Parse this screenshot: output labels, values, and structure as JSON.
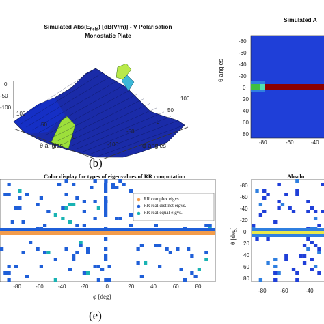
{
  "captions": {
    "b": "(b)",
    "e": "(e)"
  },
  "chart_data": [
    {
      "type": "surface",
      "title": "Simulated Abs(E_field) [dB(V/m)] - V Polarisation",
      "title_parts": {
        "pre": "Simulated Abs(E",
        "sub": "field",
        "post": ") [dB(V/m)] - V Polarisation"
      },
      "subtitle": "Monostatic Plate",
      "xlabel": "θ angles",
      "ylabel": "φ angles",
      "z_ticks": [
        "0",
        "-50",
        "-100"
      ],
      "x_ticks": [
        "100",
        "50",
        "0"
      ],
      "y_ticks": [
        "100",
        "50",
        "0",
        "-50",
        "-100"
      ],
      "z_range": [
        -120,
        10
      ]
    },
    {
      "type": "heatmap",
      "title": "Simulated A",
      "ylabel": "θ angles",
      "y_ticks": [
        -80,
        -60,
        -40,
        -20,
        0,
        20,
        40,
        60,
        80
      ],
      "x_ticks": [
        -80,
        -60,
        -40
      ],
      "background_color": "#1f3fd8",
      "highlights": [
        {
          "theta": 0,
          "phi_from": -90,
          "phi_to": -75,
          "color": "#3fbf3f"
        },
        {
          "theta": 0,
          "phi_from": -75,
          "phi_to": -30,
          "color": "#8b0000"
        }
      ]
    },
    {
      "type": "scatter",
      "title": "Color display for types of eigenvalues of RR computation",
      "xlabel": "φ [deg]",
      "x_ticks": [
        -80,
        -60,
        -40,
        -20,
        0,
        20,
        40,
        60,
        80
      ],
      "legend": [
        {
          "label": "RR complex eigvs.",
          "color": "#f39c4b"
        },
        {
          "label": "RR real distinct eigvs.",
          "color": "#1f5fd8"
        },
        {
          "label": "RR real equal eigvs.",
          "color": "#19b3b3"
        }
      ],
      "dominant_row_theta": 0
    },
    {
      "type": "heatmap",
      "title": "Absolu",
      "ylabel": "θ [deg]",
      "y_ticks": [
        -80,
        -60,
        -40,
        -20,
        0,
        20,
        40,
        60,
        80
      ],
      "x_ticks": [
        -80,
        -60,
        -40
      ],
      "highlight_row_theta": 0,
      "highlight_color": "#e8e84a"
    }
  ]
}
